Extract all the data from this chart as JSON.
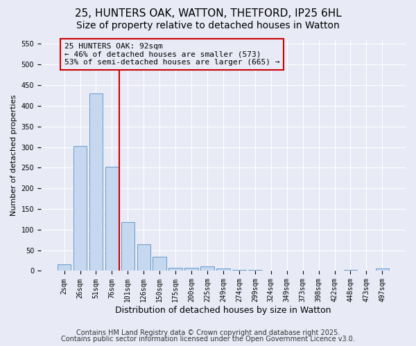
{
  "title1": "25, HUNTERS OAK, WATTON, THETFORD, IP25 6HL",
  "title2": "Size of property relative to detached houses in Watton",
  "xlabel": "Distribution of detached houses by size in Watton",
  "ylabel": "Number of detached properties",
  "categories": [
    "2sqm",
    "26sqm",
    "51sqm",
    "76sqm",
    "101sqm",
    "126sqm",
    "150sqm",
    "175sqm",
    "200sqm",
    "225sqm",
    "249sqm",
    "274sqm",
    "299sqm",
    "324sqm",
    "349sqm",
    "373sqm",
    "398sqm",
    "422sqm",
    "448sqm",
    "473sqm",
    "497sqm"
  ],
  "values": [
    16,
    302,
    430,
    253,
    118,
    65,
    35,
    8,
    8,
    11,
    5,
    3,
    2,
    0,
    0,
    0,
    0,
    0,
    3,
    0,
    5
  ],
  "bar_color": "#c5d8f0",
  "bar_edge_color": "#6699cc",
  "background_color": "#e8eaf6",
  "grid_color": "#ffffff",
  "vline_color": "#cc0000",
  "vline_pos": 3.45,
  "annotation_line1": "25 HUNTERS OAK: 92sqm",
  "annotation_line2": "← 46% of detached houses are smaller (573)",
  "annotation_line3": "53% of semi-detached houses are larger (665) →",
  "annotation_box_color": "#cc0000",
  "ylim": [
    0,
    560
  ],
  "yticks": [
    0,
    50,
    100,
    150,
    200,
    250,
    300,
    350,
    400,
    450,
    500,
    550
  ],
  "footer1": "Contains HM Land Registry data © Crown copyright and database right 2025.",
  "footer2": "Contains public sector information licensed under the Open Government Licence v3.0.",
  "title_fontsize": 11,
  "subtitle_fontsize": 10,
  "tick_fontsize": 7,
  "ylabel_fontsize": 8,
  "xlabel_fontsize": 9,
  "annotation_fontsize": 8,
  "footer_fontsize": 7
}
